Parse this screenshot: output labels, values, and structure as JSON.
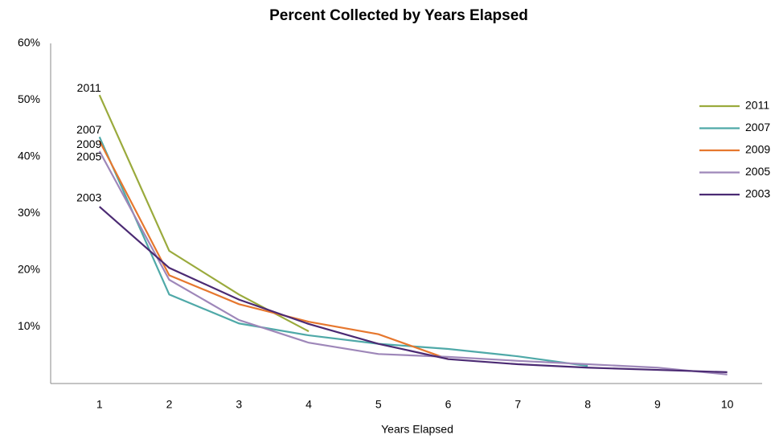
{
  "chart_data": {
    "type": "line",
    "title": "Percent Collected by Years Elapsed",
    "x_label": "Years Elapsed",
    "x": [
      1,
      2,
      3,
      4,
      5,
      6,
      7,
      8,
      9,
      10
    ],
    "xlim": [
      0.3,
      10.5
    ],
    "xticks": [
      1,
      2,
      3,
      4,
      5,
      6,
      7,
      8,
      9,
      10
    ],
    "ylim": [
      0,
      60
    ],
    "yticks": [
      {
        "value": 10,
        "label": "10%"
      },
      {
        "value": 20,
        "label": "20%"
      },
      {
        "value": 30,
        "label": "30%"
      },
      {
        "value": 40,
        "label": "40%"
      },
      {
        "value": 50,
        "label": "50%"
      },
      {
        "value": 60,
        "label": "60%"
      }
    ],
    "grid": false,
    "legend": "right",
    "series": [
      {
        "name": "2011",
        "color": "#9aaa3c",
        "values": [
          50.9,
          23.4,
          15.7,
          9.2,
          null,
          null,
          null,
          null,
          null,
          null
        ]
      },
      {
        "name": "2007",
        "color": "#4fa9a8",
        "values": [
          43.5,
          15.7,
          10.6,
          8.5,
          7.0,
          6.1,
          4.8,
          3.1,
          null,
          null
        ]
      },
      {
        "name": "2009",
        "color": "#e6772e",
        "values": [
          42.8,
          19.1,
          14.0,
          10.9,
          8.7,
          4.3,
          null,
          null,
          null,
          null
        ]
      },
      {
        "name": "2005",
        "color": "#9e87b9",
        "values": [
          41.0,
          18.3,
          11.2,
          7.2,
          5.2,
          4.7,
          4.0,
          3.4,
          2.8,
          1.6
        ]
      },
      {
        "name": "2003",
        "color": "#4b2a73",
        "values": [
          31.2,
          20.4,
          14.8,
          10.5,
          7.0,
          4.3,
          3.4,
          2.8,
          2.4,
          2.0
        ]
      }
    ]
  }
}
